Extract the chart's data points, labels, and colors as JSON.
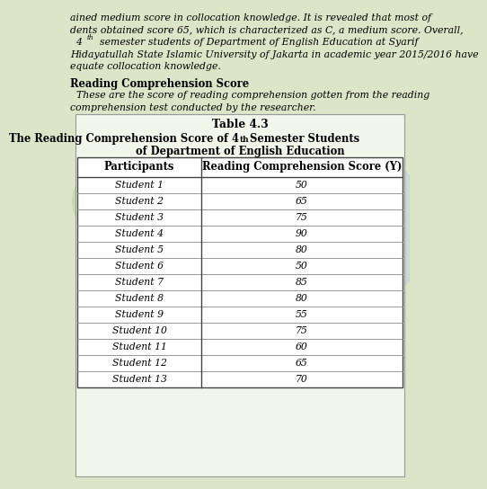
{
  "title_line1": "Table 4.3",
  "title_line2_pre": "The Reading Comprehension Score of 4",
  "title_line2_sup": "th",
  "title_line2_post": " Semester Students",
  "title_line3": "of Department of English Education",
  "col1_header": "Participants",
  "col2_header": "Reading Comprehension Score (Y)",
  "rows": [
    [
      "Student 1",
      "50"
    ],
    [
      "Student 2",
      "65"
    ],
    [
      "Student 3",
      "75"
    ],
    [
      "Student 4",
      "90"
    ],
    [
      "Student 5",
      "80"
    ],
    [
      "Student 6",
      "50"
    ],
    [
      "Student 7",
      "85"
    ],
    [
      "Student 8",
      "80"
    ],
    [
      "Student 9",
      "55"
    ],
    [
      "Student 10",
      "75"
    ],
    [
      "Student 11",
      "60"
    ],
    [
      "Student 12",
      "65"
    ],
    [
      "Student 13",
      "70"
    ]
  ],
  "line1": "ained medium score in collocation knowledge. It is revealed that most of",
  "line2": "dents obtained score 65, which is characterized as C, a medium score. Overall,",
  "line3_pre": "  4",
  "line3_sup": "th",
  "line3_post": "  semester students of Department of English Education at Syarif",
  "line4": "Hidayatullah State Islamic University of Jakarta in academic year 2015/2016 have",
  "line5": "equate collocation knowledge.",
  "sec_title": "Reading Comprehension Score",
  "sec_body1": "  These are the score of reading comprehension gotten from the reading",
  "sec_body2": "comprehension test conducted by the researcher.",
  "bg_color": "#dde5c8",
  "watermark_color": "#b8cee8",
  "watermark_color2": "#c5d8a0"
}
